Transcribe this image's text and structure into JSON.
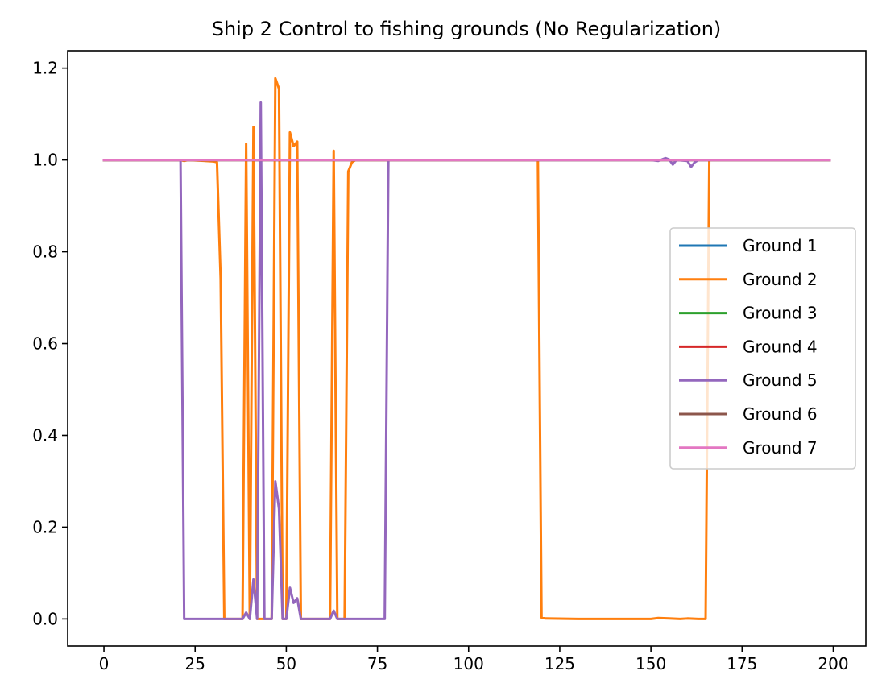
{
  "chart_data": {
    "type": "line",
    "title": "Ship 2 Control to fishing grounds (No Regularization)",
    "xlabel": "",
    "ylabel": "",
    "xlim": [
      -9.95,
      208.95
    ],
    "ylim": [
      -0.059,
      1.238
    ],
    "xticks": [
      0,
      25,
      50,
      75,
      100,
      125,
      150,
      175,
      200
    ],
    "yticks": [
      0.0,
      0.2,
      0.4,
      0.6,
      0.8,
      1.0,
      1.2
    ],
    "ytick_labels": [
      "0.0",
      "0.2",
      "0.4",
      "0.6",
      "0.8",
      "1.0",
      "1.2"
    ],
    "grid": false,
    "legend_position": "center-right",
    "series": [
      {
        "name": "Ground 1",
        "color": "#1f77b4",
        "points": [
          [
            0,
            1.0
          ],
          [
            199,
            1.0
          ]
        ]
      },
      {
        "name": "Ground 2",
        "color": "#ff7f0e",
        "points": [
          [
            0,
            1.0
          ],
          [
            21,
            1.0
          ],
          [
            22,
            0.998
          ],
          [
            23,
            1.0
          ],
          [
            30,
            0.997
          ],
          [
            31,
            0.995
          ],
          [
            32,
            0.74
          ],
          [
            33,
            0.0
          ],
          [
            34,
            0.0
          ],
          [
            38,
            0.0
          ],
          [
            39,
            1.035
          ],
          [
            40,
            0.0
          ],
          [
            41,
            1.072
          ],
          [
            42,
            0.0
          ],
          [
            46,
            0.0
          ],
          [
            47,
            1.178
          ],
          [
            48,
            1.155
          ],
          [
            49,
            0.0
          ],
          [
            50,
            0.0
          ],
          [
            51,
            1.06
          ],
          [
            52,
            1.03
          ],
          [
            53,
            1.04
          ],
          [
            54,
            0.0
          ],
          [
            62,
            0.0
          ],
          [
            63,
            1.02
          ],
          [
            64,
            0.0
          ],
          [
            66,
            0.0
          ],
          [
            67,
            0.975
          ],
          [
            68,
            0.995
          ],
          [
            69,
            1.0
          ],
          [
            119,
            1.0
          ],
          [
            120,
            0.003
          ],
          [
            121,
            0.001
          ],
          [
            130,
            0.0
          ],
          [
            150,
            0.0
          ],
          [
            152,
            0.002
          ],
          [
            155,
            0.001
          ],
          [
            158,
            0.0
          ],
          [
            160,
            0.001
          ],
          [
            163,
            0.0
          ],
          [
            165,
            0.0
          ],
          [
            166,
            1.0
          ],
          [
            199,
            1.0
          ]
        ]
      },
      {
        "name": "Ground 3",
        "color": "#2ca02c",
        "points": [
          [
            0,
            1.0
          ],
          [
            199,
            1.0
          ]
        ]
      },
      {
        "name": "Ground 4",
        "color": "#d62728",
        "points": [
          [
            0,
            1.0
          ],
          [
            199,
            1.0
          ]
        ]
      },
      {
        "name": "Ground 5",
        "color": "#9467bd",
        "points": [
          [
            0,
            1.0
          ],
          [
            21,
            1.0
          ],
          [
            22,
            0.0
          ],
          [
            38,
            0.0
          ],
          [
            39,
            0.014
          ],
          [
            40,
            0.0
          ],
          [
            41,
            0.086
          ],
          [
            42,
            0.0
          ],
          [
            43,
            1.125
          ],
          [
            44,
            0.0
          ],
          [
            46,
            0.0
          ],
          [
            47,
            0.3
          ],
          [
            48,
            0.24
          ],
          [
            49,
            0.0
          ],
          [
            50,
            0.0
          ],
          [
            51,
            0.068
          ],
          [
            52,
            0.035
          ],
          [
            53,
            0.045
          ],
          [
            54,
            0.0
          ],
          [
            62,
            0.0
          ],
          [
            63,
            0.018
          ],
          [
            64,
            0.0
          ],
          [
            77,
            0.0
          ],
          [
            78,
            1.0
          ],
          [
            150,
            1.0
          ],
          [
            152,
            0.998
          ],
          [
            154,
            1.004
          ],
          [
            155,
            1.001
          ],
          [
            156,
            0.99
          ],
          [
            157,
            1.0
          ],
          [
            160,
            0.998
          ],
          [
            161,
            0.985
          ],
          [
            162,
            0.995
          ],
          [
            163,
            1.0
          ],
          [
            199,
            1.0
          ]
        ]
      },
      {
        "name": "Ground 6",
        "color": "#8c564b",
        "points": [
          [
            0,
            1.0
          ],
          [
            199,
            1.0
          ]
        ]
      },
      {
        "name": "Ground 7",
        "color": "#e377c2",
        "points": [
          [
            0,
            1.0
          ],
          [
            199,
            1.0
          ]
        ]
      }
    ]
  }
}
